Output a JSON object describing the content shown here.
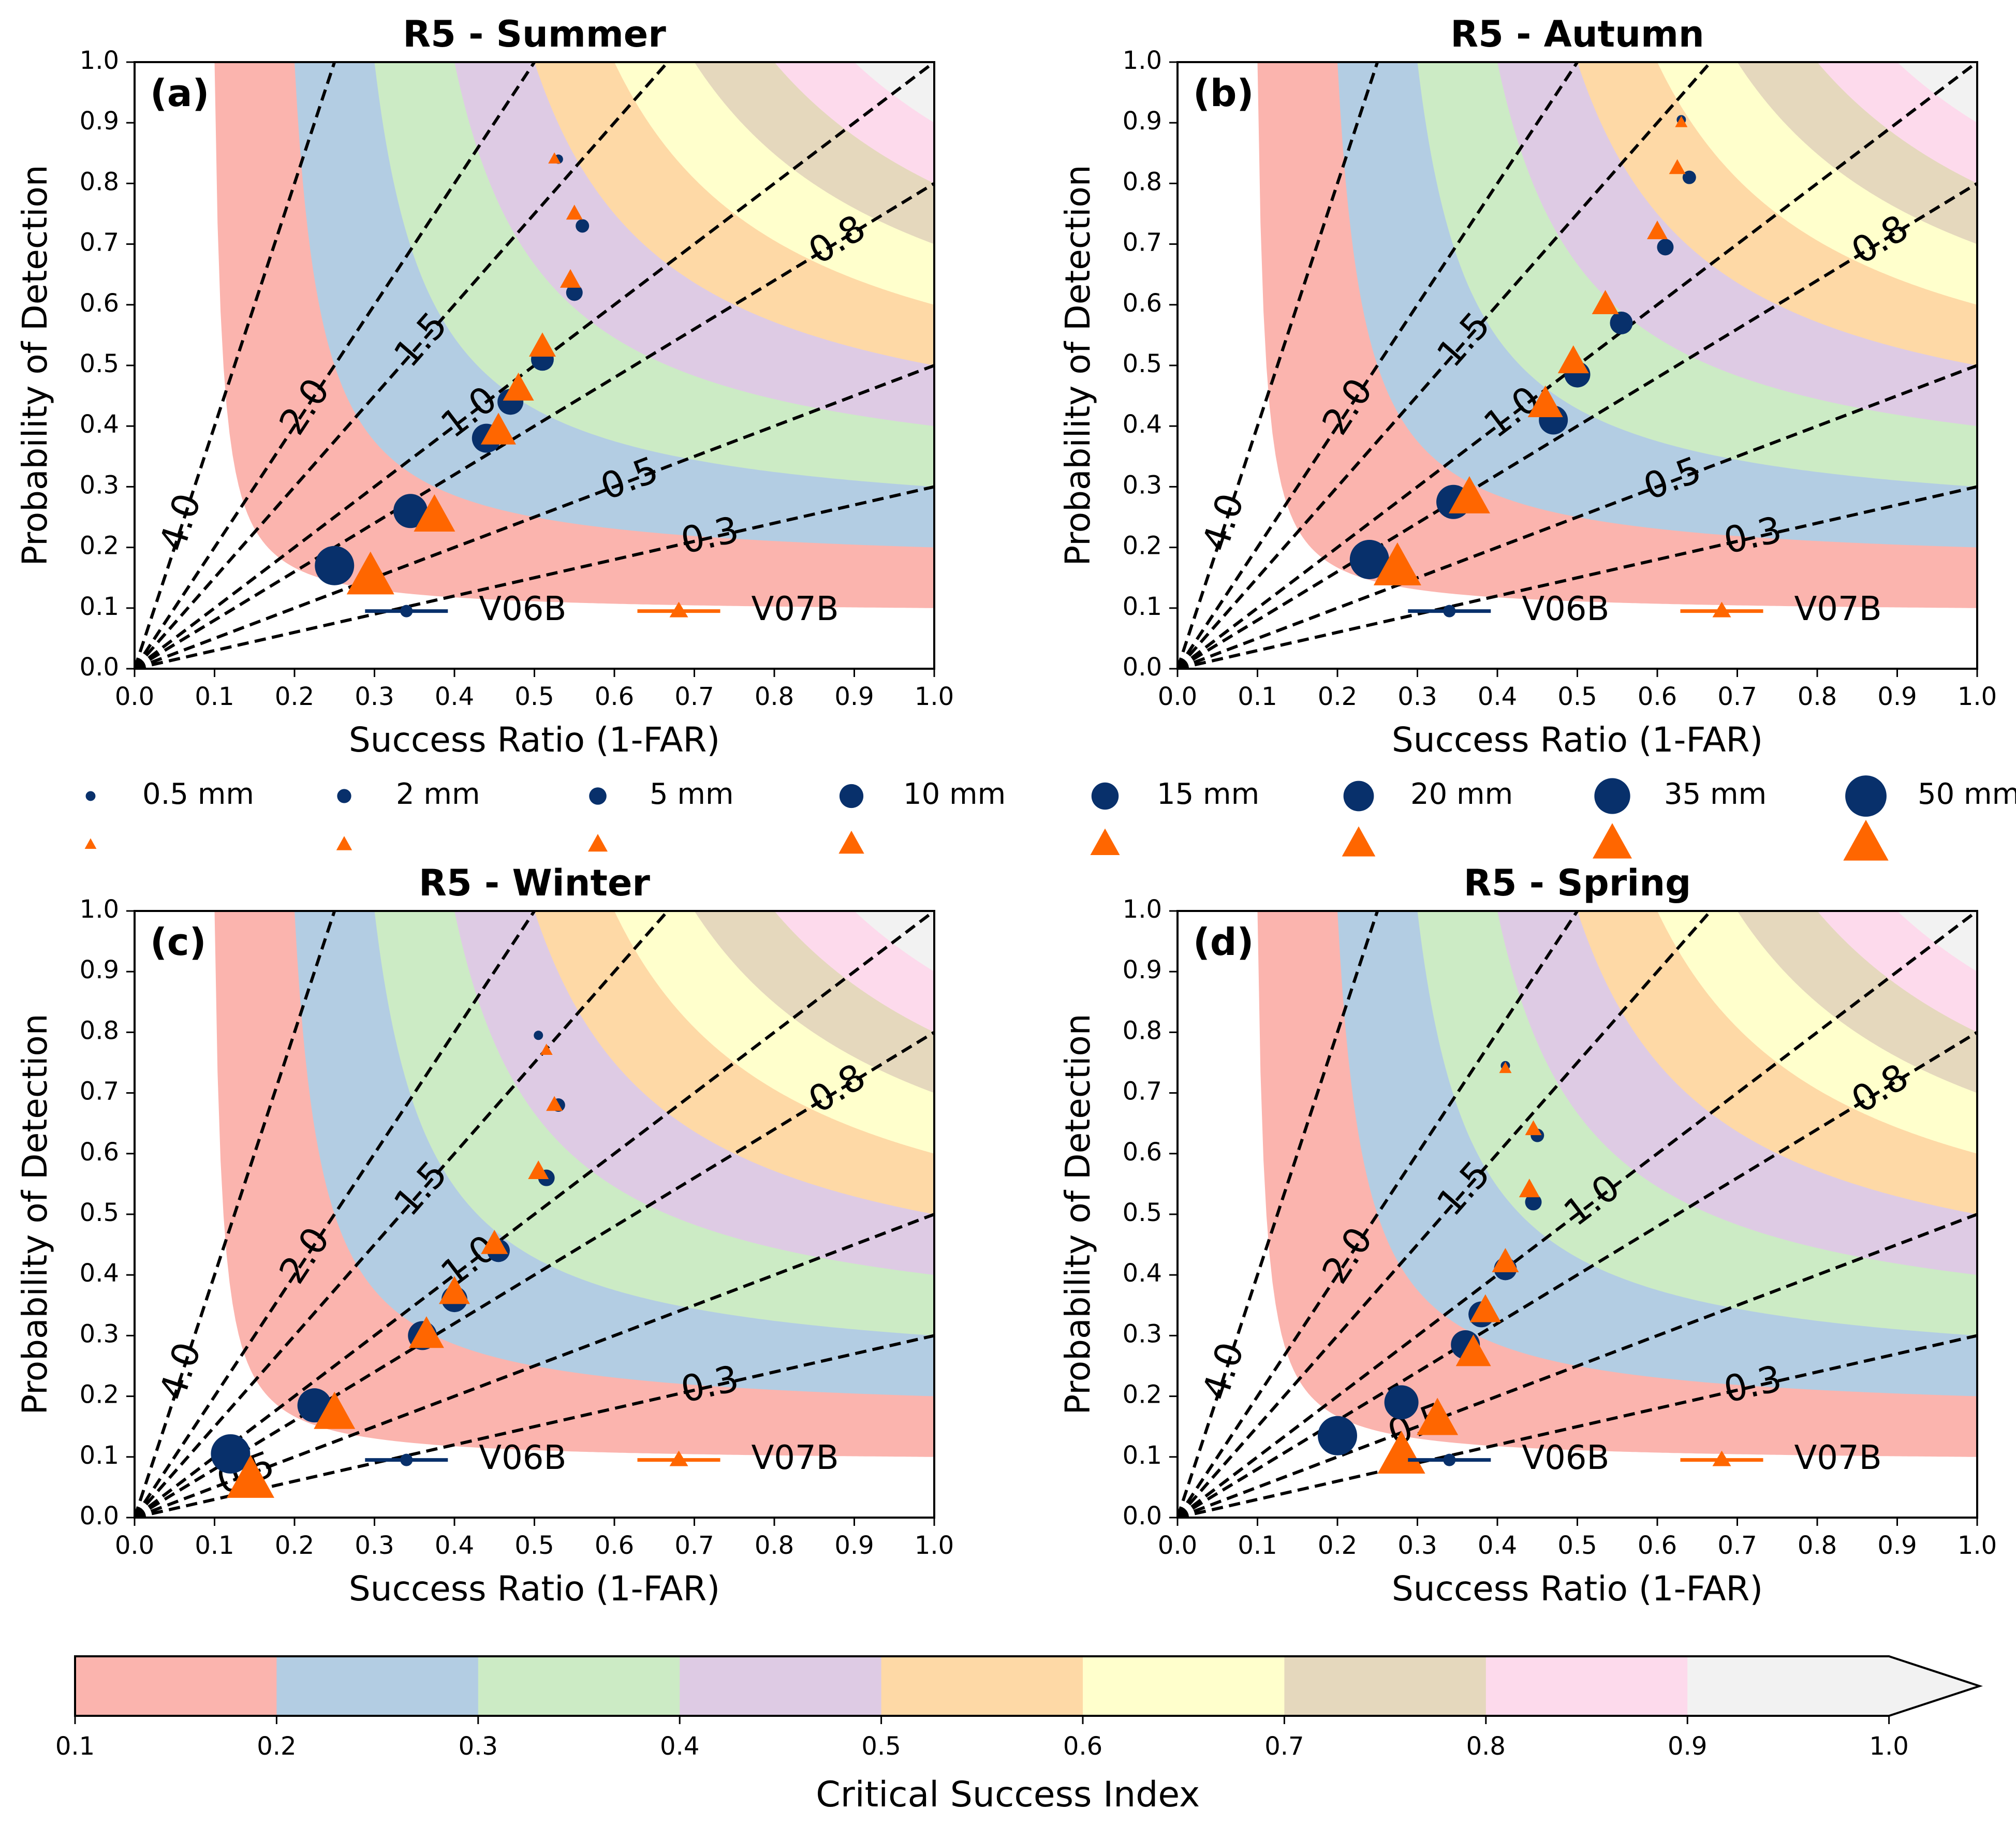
{
  "figure": {
    "colorbar_label": "Critical Success Index",
    "colorbar_ticks": [
      "0.1",
      "0.2",
      "0.3",
      "0.4",
      "0.5",
      "0.6",
      "0.7",
      "0.8",
      "0.9",
      "1.0"
    ],
    "csi_levels": [
      0.1,
      0.2,
      0.3,
      0.4,
      0.5,
      0.6,
      0.7,
      0.8,
      0.9,
      1.0
    ],
    "csi_colors": [
      "#fbb4ae",
      "#b3cde3",
      "#ccebc5",
      "#decbe4",
      "#fed9a6",
      "#ffffcc",
      "#e5d8bd",
      "#fddaec",
      "#f2f2f2"
    ],
    "bias_lines": [
      0.3,
      0.5,
      0.8,
      1.0,
      1.5,
      2.0,
      4.0
    ],
    "bias_labels": [
      "0.3",
      "0.5",
      "0.8",
      "1.0",
      "1.5",
      "2.0",
      "4.0"
    ],
    "thresholds": [
      "0.5 mm",
      "2 mm",
      "5 mm",
      "10 mm",
      "15 mm",
      "20 mm",
      "35 mm",
      "50 mm"
    ],
    "series_colors": {
      "V06B": "#08306b",
      "V07B": "#ff6600"
    },
    "legend_series": [
      "V06B",
      "V07B"
    ]
  },
  "chart_data": [
    {
      "type": "scatter",
      "panel": "(a)",
      "title": "R5 - Summer",
      "xlabel": "Success Ratio (1-FAR)",
      "ylabel": "Probability of Detection",
      "xlim": [
        0,
        1
      ],
      "ylim": [
        0,
        1
      ],
      "xticks": [
        "0.0",
        "0.1",
        "0.2",
        "0.3",
        "0.4",
        "0.5",
        "0.6",
        "0.7",
        "0.8",
        "0.9",
        "1.0"
      ],
      "yticks": [
        "0.0",
        "0.1",
        "0.2",
        "0.3",
        "0.4",
        "0.5",
        "0.6",
        "0.7",
        "0.8",
        "0.9",
        "1.0"
      ],
      "bias_label_order": [
        "4.0",
        "2.0",
        "1.5",
        "1.0",
        "0.8",
        "0.5",
        "0.3"
      ],
      "series": [
        {
          "name": "V06B",
          "marker": "circle",
          "x": [
            0.53,
            0.56,
            0.55,
            0.51,
            0.47,
            0.44,
            0.345,
            0.25
          ],
          "y": [
            0.84,
            0.73,
            0.62,
            0.51,
            0.44,
            0.38,
            0.26,
            0.17
          ]
        },
        {
          "name": "V07B",
          "marker": "triangle",
          "x": [
            0.525,
            0.55,
            0.545,
            0.51,
            0.48,
            0.455,
            0.375,
            0.295
          ],
          "y": [
            0.84,
            0.75,
            0.64,
            0.53,
            0.46,
            0.39,
            0.25,
            0.15
          ]
        }
      ]
    },
    {
      "type": "scatter",
      "panel": "(b)",
      "title": "R5 - Autumn",
      "xlabel": "Success Ratio (1-FAR)",
      "ylabel": "Probability of Detection",
      "xlim": [
        0,
        1
      ],
      "ylim": [
        0,
        1
      ],
      "xticks": [
        "0.0",
        "0.1",
        "0.2",
        "0.3",
        "0.4",
        "0.5",
        "0.6",
        "0.7",
        "0.8",
        "0.9",
        "1.0"
      ],
      "yticks": [
        "0.0",
        "0.1",
        "0.2",
        "0.3",
        "0.4",
        "0.5",
        "0.6",
        "0.7",
        "0.8",
        "0.9",
        "1.0"
      ],
      "bias_label_order": [
        "4.0",
        "2.0",
        "1.5",
        "1.0",
        "0.8",
        "0.5",
        "0.3"
      ],
      "series": [
        {
          "name": "V06B",
          "marker": "circle",
          "x": [
            0.63,
            0.64,
            0.61,
            0.555,
            0.5,
            0.47,
            0.345,
            0.24
          ],
          "y": [
            0.905,
            0.81,
            0.695,
            0.57,
            0.485,
            0.41,
            0.275,
            0.18
          ]
        },
        {
          "name": "V07B",
          "marker": "triangle",
          "x": [
            0.63,
            0.625,
            0.6,
            0.535,
            0.495,
            0.46,
            0.365,
            0.275
          ],
          "y": [
            0.9,
            0.825,
            0.72,
            0.6,
            0.505,
            0.435,
            0.28,
            0.165
          ]
        }
      ]
    },
    {
      "type": "scatter",
      "panel": "(c)",
      "title": "R5 - Winter",
      "xlabel": "Success Ratio (1-FAR)",
      "ylabel": "Probability of Detection",
      "xlim": [
        0,
        1
      ],
      "ylim": [
        0,
        1
      ],
      "xticks": [
        "0.0",
        "0.1",
        "0.2",
        "0.3",
        "0.4",
        "0.5",
        "0.6",
        "0.7",
        "0.8",
        "0.9",
        "1.0"
      ],
      "yticks": [
        "0.0",
        "0.1",
        "0.2",
        "0.3",
        "0.4",
        "0.5",
        "0.6",
        "0.7",
        "0.8",
        "0.9",
        "1.0"
      ],
      "bias_label_order": [
        "4.0",
        "2.0",
        "1.5",
        "1.0",
        "0.8",
        "0.3",
        "0.5"
      ],
      "series": [
        {
          "name": "V06B",
          "marker": "circle",
          "x": [
            0.505,
            0.53,
            0.515,
            0.455,
            0.4,
            0.36,
            0.225,
            0.12
          ],
          "y": [
            0.795,
            0.68,
            0.56,
            0.44,
            0.36,
            0.3,
            0.185,
            0.105
          ]
        },
        {
          "name": "V07B",
          "marker": "triangle",
          "x": [
            0.515,
            0.525,
            0.505,
            0.45,
            0.4,
            0.365,
            0.25,
            0.145
          ],
          "y": [
            0.77,
            0.68,
            0.57,
            0.45,
            0.37,
            0.3,
            0.17,
            0.06
          ]
        }
      ]
    },
    {
      "type": "scatter",
      "panel": "(d)",
      "title": "R5 - Spring",
      "xlabel": "Success Ratio (1-FAR)",
      "ylabel": "Probability of Detection",
      "xlim": [
        0,
        1
      ],
      "ylim": [
        0,
        1
      ],
      "xticks": [
        "0.0",
        "0.1",
        "0.2",
        "0.3",
        "0.4",
        "0.5",
        "0.6",
        "0.7",
        "0.8",
        "0.9",
        "1.0"
      ],
      "yticks": [
        "0.0",
        "0.1",
        "0.2",
        "0.3",
        "0.4",
        "0.5",
        "0.6",
        "0.7",
        "0.8",
        "0.9",
        "1.0"
      ],
      "bias_label_order": [
        "4.0",
        "2.0",
        "1.5",
        "1.0",
        "0.8",
        "0.5",
        "0.3"
      ],
      "series": [
        {
          "name": "V06B",
          "marker": "circle",
          "x": [
            0.41,
            0.45,
            0.445,
            0.41,
            0.38,
            0.36,
            0.28,
            0.2
          ],
          "y": [
            0.745,
            0.63,
            0.52,
            0.41,
            0.335,
            0.285,
            0.19,
            0.135
          ]
        },
        {
          "name": "V07B",
          "marker": "triangle",
          "x": [
            0.41,
            0.445,
            0.44,
            0.41,
            0.385,
            0.37,
            0.325,
            0.28
          ],
          "y": [
            0.74,
            0.64,
            0.54,
            0.42,
            0.34,
            0.27,
            0.16,
            0.1
          ]
        }
      ]
    }
  ]
}
